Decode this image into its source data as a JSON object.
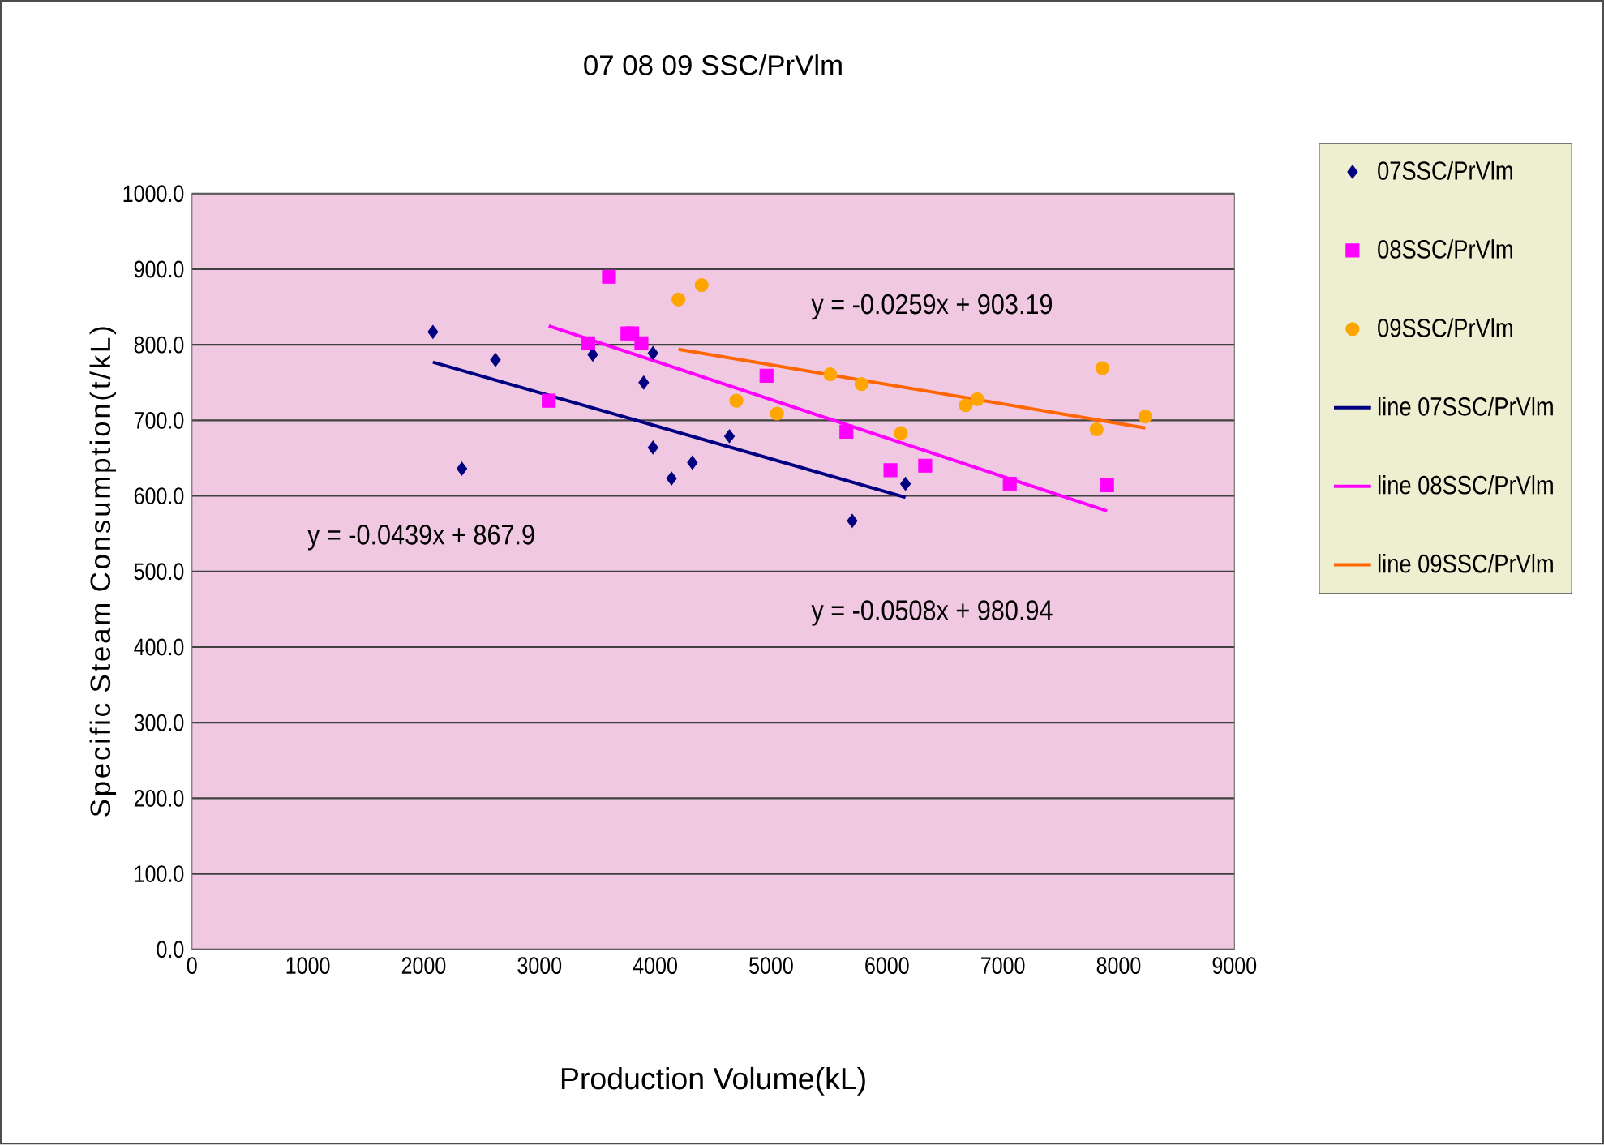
{
  "chart_data": {
    "type": "scatter",
    "title": "07 08 09 SSC/PrVlm",
    "xlabel": "Production Volume(kL)",
    "ylabel": "Specific Steam Consumption(t/kL)",
    "xlim": [
      0,
      9000
    ],
    "xticks": [
      0,
      1000,
      2000,
      3000,
      4000,
      5000,
      6000,
      7000,
      8000,
      9000
    ],
    "ylim": [
      0,
      1000
    ],
    "yticks": [
      {
        "value": 0,
        "label": "0.0"
      },
      {
        "value": 100,
        "label": "100.0"
      },
      {
        "value": 200,
        "label": "200.0"
      },
      {
        "value": 300,
        "label": "300.0"
      },
      {
        "value": 400,
        "label": "400.0"
      },
      {
        "value": 500,
        "label": "500.0"
      },
      {
        "value": 600,
        "label": "600.0"
      },
      {
        "value": 700,
        "label": "700.0"
      },
      {
        "value": 800,
        "label": "800.0"
      },
      {
        "value": 900,
        "label": "900.0"
      },
      {
        "value": 1000,
        "label": "1000.0"
      }
    ],
    "grid": "y",
    "legend": "right",
    "series": [
      {
        "name": "07SSC/PrVlm",
        "type": "scatter",
        "marker": "diamond",
        "color": "#000080",
        "x": [
          2080,
          2330,
          2620,
          3460,
          3900,
          3980,
          3980,
          4140,
          4320,
          4640,
          5700,
          6160
        ],
        "values": [
          817,
          636,
          780,
          787,
          750,
          789,
          664,
          623,
          644,
          679,
          567,
          616
        ]
      },
      {
        "name": "08SSC/PrVlm",
        "type": "scatter",
        "marker": "square",
        "color": "#ff00ff",
        "x": [
          3080,
          3420,
          3600,
          3760,
          3800,
          3880,
          4960,
          5650,
          6030,
          6330,
          7060,
          7900
        ],
        "values": [
          726,
          802,
          890,
          815,
          815,
          802,
          759,
          685,
          634,
          640,
          616,
          614
        ]
      },
      {
        "name": "09SSC/PrVlm",
        "type": "scatter",
        "marker": "circle",
        "color": "#ffa500",
        "x": [
          4200,
          4400,
          4700,
          5050,
          5510,
          5780,
          6120,
          6680,
          6780,
          7810,
          7860,
          8230
        ],
        "values": [
          860,
          879,
          726,
          709,
          761,
          748,
          683,
          720,
          728,
          688,
          769,
          705
        ]
      },
      {
        "name": "line 07SSC/PrVlm",
        "type": "line",
        "color": "#000080",
        "x": [
          2080,
          6160
        ],
        "values": [
          777,
          598
        ]
      },
      {
        "name": "line 08SSC/PrVlm",
        "type": "line",
        "color": "#ff00ff",
        "x": [
          3080,
          7900
        ],
        "values": [
          825,
          580
        ]
      },
      {
        "name": "line 09SSC/PrVlm",
        "type": "line",
        "color": "#ff6600",
        "x": [
          4200,
          8230
        ],
        "values": [
          794,
          690
        ]
      }
    ],
    "annotations": [
      "y = -0.0439x + 867.9",
      "y = -0.0508x + 980.94",
      "y = -0.0259x + 903.19"
    ]
  }
}
